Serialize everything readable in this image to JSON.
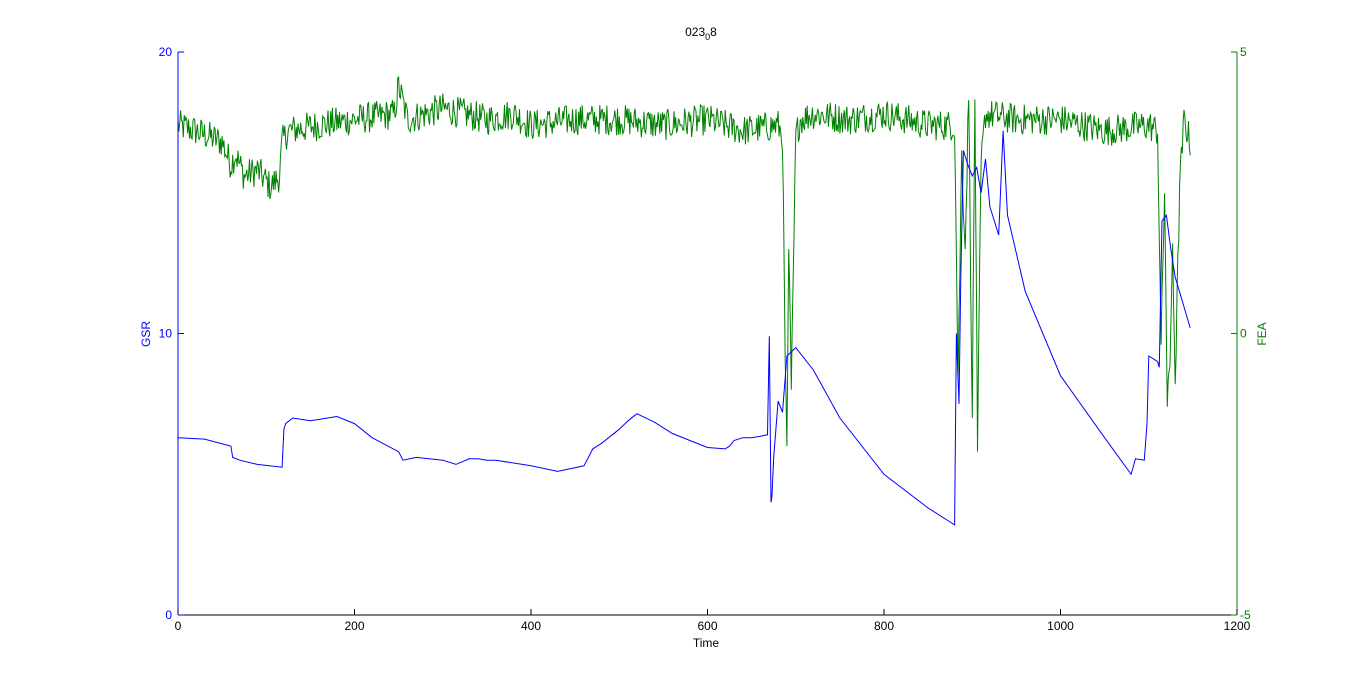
{
  "chart_data": {
    "type": "line",
    "title": {
      "main": "023",
      "subscript": "0",
      "suffix": "8"
    },
    "xlabel": "Time",
    "xlim": [
      0,
      1200
    ],
    "xticks": [
      "0",
      "200",
      "400",
      "600",
      "800",
      "1000",
      "1200"
    ],
    "xtick_values": [
      0,
      200,
      400,
      600,
      800,
      1000,
      1200
    ],
    "grid": false,
    "left_axis": {
      "label": "GSR",
      "ylim": [
        0,
        20
      ],
      "ticks": [
        "0",
        "10",
        "20"
      ],
      "tick_values": [
        0,
        10,
        20
      ],
      "color": "#0000ff"
    },
    "right_axis": {
      "label": "FEA",
      "ylim": [
        -5,
        5
      ],
      "ticks": [
        "-5",
        "0",
        "5"
      ],
      "tick_values": [
        -5,
        0,
        5
      ],
      "color": "#008000"
    },
    "series": [
      {
        "axis": "left",
        "color": "#0000ff",
        "x": [
          0,
          30,
          60,
          62,
          70,
          90,
          118,
          120,
          122,
          130,
          150,
          180,
          200,
          220,
          250,
          255,
          270,
          300,
          315,
          330,
          340,
          350,
          360,
          400,
          430,
          445,
          460,
          470,
          480,
          500,
          510,
          520,
          540,
          560,
          580,
          600,
          620,
          625,
          630,
          640,
          650,
          660,
          668,
          670,
          672,
          673,
          675,
          680,
          685,
          690,
          700,
          720,
          750,
          800,
          850,
          880,
          882,
          885,
          887,
          890,
          895,
          900,
          905,
          910,
          915,
          920,
          925,
          930,
          935,
          940,
          960,
          1000,
          1050,
          1080,
          1085,
          1095,
          1098,
          1100,
          1110,
          1112,
          1115,
          1120,
          1125,
          1130,
          1147
        ],
        "y": [
          6.3,
          6.25,
          6.0,
          5.6,
          5.5,
          5.35,
          5.25,
          6.6,
          6.8,
          7.0,
          6.9,
          7.05,
          6.8,
          6.3,
          5.8,
          5.5,
          5.6,
          5.5,
          5.35,
          5.55,
          5.55,
          5.5,
          5.5,
          5.3,
          5.1,
          5.2,
          5.3,
          5.9,
          6.1,
          6.6,
          6.9,
          7.15,
          6.85,
          6.45,
          6.2,
          5.95,
          5.9,
          6.0,
          6.2,
          6.3,
          6.3,
          6.35,
          6.4,
          9.9,
          4.0,
          4.2,
          5.6,
          7.6,
          7.2,
          9.2,
          9.5,
          8.7,
          7.0,
          5.0,
          3.8,
          3.2,
          10.0,
          7.5,
          12.0,
          16.5,
          16.0,
          15.6,
          15.9,
          15.0,
          16.2,
          14.5,
          14.0,
          13.5,
          17.2,
          14.2,
          11.5,
          8.5,
          6.3,
          5.0,
          5.55,
          5.5,
          6.8,
          9.2,
          9.0,
          8.8,
          14.0,
          14.2,
          13.0,
          12.0,
          10.2
        ]
      },
      {
        "axis": "right",
        "color": "#008000",
        "noise_amplitude": 0.28,
        "x": [
          0,
          20,
          50,
          60,
          65,
          75,
          90,
          105,
          115,
          118,
          125,
          160,
          200,
          245,
          250,
          260,
          300,
          350,
          380,
          400,
          450,
          500,
          550,
          600,
          640,
          680,
          685,
          688,
          690,
          692,
          695,
          700,
          705,
          720,
          760,
          800,
          850,
          880,
          884,
          888,
          892,
          896,
          900,
          903,
          906,
          910,
          915,
          950,
          1000,
          1050,
          1100,
          1110,
          1114,
          1118,
          1121,
          1124,
          1127,
          1130,
          1135,
          1140,
          1147
        ],
        "y": [
          3.7,
          3.6,
          3.4,
          3.0,
          3.2,
          2.8,
          2.9,
          2.6,
          2.8,
          3.4,
          3.6,
          3.7,
          3.8,
          3.9,
          4.4,
          3.8,
          4.0,
          3.8,
          3.9,
          3.7,
          3.8,
          3.8,
          3.7,
          3.8,
          3.6,
          3.7,
          3.5,
          -0.5,
          -2.0,
          1.5,
          -1.0,
          3.5,
          3.8,
          3.9,
          3.8,
          3.9,
          3.7,
          3.7,
          -0.8,
          3.2,
          1.5,
          4.3,
          -1.5,
          4.2,
          -2.1,
          3.0,
          3.9,
          3.8,
          3.8,
          3.6,
          3.7,
          3.6,
          -0.2,
          2.6,
          -1.3,
          -0.6,
          1.6,
          -0.9,
          2.6,
          3.8,
          3.4
        ]
      }
    ]
  }
}
